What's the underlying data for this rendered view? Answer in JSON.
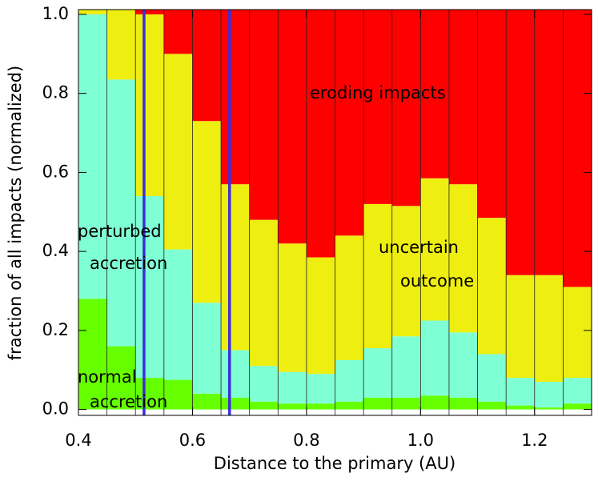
{
  "chart_data": {
    "type": "stacked_histogram",
    "xlabel": "Distance to the primary (AU)",
    "ylabel": "fraction of all impacts (normalized)",
    "bins": [
      0.4,
      0.45,
      0.5,
      0.55,
      0.6,
      0.65,
      0.7,
      0.75,
      0.8,
      0.85,
      0.9,
      0.95,
      1.0,
      1.05,
      1.1,
      1.15,
      1.2,
      1.25,
      1.3
    ],
    "series": [
      {
        "label": [
          "normal",
          "accretion"
        ],
        "color": "#66ff00",
        "values": [
          0.28,
          0.16,
          0.08,
          0.075,
          0.04,
          0.03,
          0.02,
          0.015,
          0.015,
          0.02,
          0.03,
          0.03,
          0.035,
          0.03,
          0.02,
          0.01,
          0.005,
          0.015
        ]
      },
      {
        "label": [
          "perturbed",
          "accretion"
        ],
        "color": "#7fffd4",
        "values": [
          0.72,
          0.675,
          0.46,
          0.33,
          0.23,
          0.12,
          0.09,
          0.08,
          0.075,
          0.105,
          0.125,
          0.155,
          0.19,
          0.165,
          0.12,
          0.07,
          0.065,
          0.065
        ]
      },
      {
        "label": [
          "uncertain",
          "outcome"
        ],
        "color": "#eeee11",
        "values": [
          0.012,
          0.177,
          0.46,
          0.495,
          0.46,
          0.42,
          0.37,
          0.325,
          0.295,
          0.315,
          0.365,
          0.33,
          0.36,
          0.375,
          0.345,
          0.26,
          0.27,
          0.23
        ]
      },
      {
        "label": [
          "eroding impacts"
        ],
        "color": "#ff0000",
        "values": [
          0,
          0,
          0.012,
          0.112,
          0.282,
          0.442,
          0.532,
          0.592,
          0.627,
          0.572,
          0.492,
          0.497,
          0.427,
          0.442,
          0.527,
          0.672,
          0.672,
          0.702
        ]
      }
    ],
    "vlines": [
      0.515,
      0.665
    ],
    "vline_color": "#3b2fd8",
    "xlim": [
      0.4,
      1.3
    ],
    "xticks": [
      0.4,
      0.6,
      0.8,
      {
        "value": 1.0,
        "label": "1.0"
      },
      1.2
    ],
    "ylim": [
      -0.015,
      1.012
    ],
    "yticks": [
      {
        "value": 0.0,
        "label": "0.0"
      },
      0.2,
      0.4,
      0.6,
      0.8,
      {
        "value": 1.0,
        "label": "1.0"
      }
    ]
  }
}
